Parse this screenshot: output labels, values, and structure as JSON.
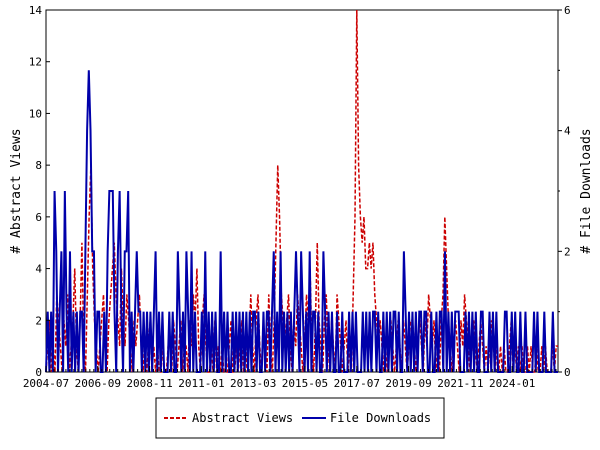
{
  "chart_data": {
    "type": "line",
    "left_axis": {
      "label": "# Abstract Views",
      "range": [
        0,
        14
      ],
      "ticks": [
        "0",
        "2",
        "4",
        "6",
        "8",
        "10",
        "12",
        "14"
      ]
    },
    "right_axis": {
      "label": "# File Downloads",
      "range": [
        0,
        6
      ],
      "ticks": [
        "0",
        "2",
        "4",
        "6"
      ]
    },
    "x_axis": {
      "start": "2004-07",
      "end": "2025-12",
      "ticks": [
        "2004-07",
        "2006-09",
        "2008-11",
        "2011-01",
        "2013-03",
        "2015-05",
        "2017-07",
        "2019-09",
        "2021-11",
        "2024-01"
      ]
    },
    "grid": false,
    "legend_placement": "bottom",
    "series": [
      {
        "name": "Abstract Views",
        "axis": "left",
        "color": "#cc0000",
        "dash": "dashed",
        "values": [
          0,
          1,
          2,
          0,
          1,
          0,
          3,
          2,
          1,
          0,
          2,
          1,
          3,
          0,
          1,
          2,
          4,
          1,
          0,
          2,
          5,
          1,
          0,
          3,
          6,
          8,
          4,
          2,
          1,
          0,
          1,
          2,
          3,
          1,
          0,
          2,
          3,
          4,
          5,
          3,
          2,
          1,
          4,
          2,
          1,
          3,
          2,
          1,
          0,
          2,
          1,
          2,
          3,
          1,
          0,
          1,
          0,
          1,
          2,
          0,
          1,
          0,
          1,
          0,
          0,
          1,
          0,
          0,
          1,
          1,
          0,
          2,
          1,
          0,
          1,
          2,
          0,
          1,
          1,
          0,
          2,
          1,
          3,
          2,
          4,
          1,
          0,
          2,
          3,
          1,
          0,
          0,
          1,
          0,
          2,
          0,
          1,
          0,
          1,
          0,
          0,
          0,
          1,
          2,
          0,
          0,
          1,
          0,
          1,
          2,
          0,
          1,
          0,
          1,
          3,
          1,
          0,
          2,
          3,
          1,
          0,
          2,
          1,
          0,
          3,
          1,
          0,
          2,
          5,
          8,
          6,
          3,
          2,
          1,
          2,
          3,
          1,
          0,
          2,
          1,
          3,
          2,
          1,
          0,
          1,
          3,
          2,
          4,
          1,
          0,
          2,
          5,
          2,
          1,
          0,
          2,
          3,
          1,
          0,
          2,
          1,
          0,
          3,
          2,
          1,
          0,
          1,
          2,
          0,
          1,
          0,
          3,
          6,
          14,
          8,
          6,
          5,
          6,
          4,
          4,
          5,
          4,
          5,
          3,
          2,
          1,
          2,
          1,
          0,
          1,
          0,
          1,
          2,
          1,
          0,
          1,
          2,
          1,
          0,
          2,
          1,
          0,
          1,
          2,
          2,
          1,
          0,
          1,
          2,
          1,
          0,
          2,
          1,
          3,
          2,
          1,
          2,
          0,
          1,
          0,
          2,
          3,
          6,
          4,
          2,
          1,
          0,
          1,
          2,
          1,
          0,
          2,
          1,
          3,
          2,
          1,
          0,
          1,
          2,
          1,
          0,
          1,
          2,
          1,
          0,
          1,
          0,
          1,
          2,
          1,
          0,
          1,
          0,
          1,
          0,
          1,
          0,
          0,
          1,
          2,
          0,
          1,
          0,
          1,
          0,
          1,
          0,
          0,
          1,
          0,
          1,
          0,
          0,
          1,
          0,
          0,
          1,
          0,
          1,
          0,
          0,
          0,
          1,
          0,
          1,
          1
        ]
      },
      {
        "name": "File Downloads",
        "axis": "right",
        "color": "#0000aa",
        "dash": "solid",
        "values": [
          0,
          1,
          0,
          1,
          0,
          3,
          2,
          0,
          1,
          2,
          0,
          3,
          1,
          0,
          2,
          0,
          1,
          0,
          1,
          0,
          1,
          1,
          0,
          2,
          4,
          5,
          4,
          2,
          2,
          0,
          1,
          1,
          0,
          0,
          1,
          0,
          2,
          3,
          3,
          3,
          1,
          0,
          2,
          3,
          1,
          0,
          2,
          2,
          3,
          0,
          1,
          0,
          1,
          2,
          1,
          1,
          0,
          1,
          0,
          1,
          0,
          1,
          0,
          1,
          2,
          0,
          1,
          0,
          1,
          0,
          0,
          0,
          1,
          0,
          1,
          0,
          0,
          2,
          1,
          0,
          1,
          0,
          2,
          1,
          0,
          2,
          0,
          1,
          0,
          0,
          0,
          1,
          0,
          2,
          0,
          1,
          0,
          1,
          0,
          1,
          0,
          0,
          2,
          0,
          1,
          0,
          1,
          0,
          0,
          1,
          0,
          1,
          0,
          1,
          0,
          1,
          0,
          1,
          0,
          1,
          0,
          1,
          1,
          0,
          1,
          0,
          0,
          1,
          0,
          1,
          1,
          0,
          1,
          2,
          0,
          1,
          0,
          2,
          0,
          1,
          0,
          1,
          0,
          1,
          0,
          1,
          2,
          1,
          0,
          2,
          1,
          0,
          1,
          0,
          2,
          0,
          1,
          1,
          0,
          1,
          0,
          0,
          2,
          1,
          0,
          1,
          0,
          1,
          0,
          0,
          1,
          0,
          0,
          1,
          0,
          0,
          0,
          1,
          0,
          1,
          0,
          1,
          0,
          0,
          0,
          1,
          0,
          1,
          0,
          1,
          0,
          1,
          1,
          0,
          1,
          0,
          0,
          1,
          0,
          1,
          0,
          1,
          0,
          1,
          1,
          0,
          1,
          0,
          0,
          2,
          1,
          0,
          1,
          0,
          1,
          0,
          1,
          0,
          1,
          1,
          0,
          1,
          1,
          0,
          0,
          1,
          0,
          0,
          1,
          0,
          1,
          1,
          0,
          2,
          0,
          1,
          0,
          1,
          0,
          1,
          1,
          1,
          0,
          0,
          0,
          1,
          0,
          1,
          0,
          1,
          0,
          1,
          0,
          0,
          1,
          1,
          0,
          0,
          0,
          1,
          0,
          1,
          0,
          1,
          0,
          0,
          0,
          0,
          1,
          1,
          0,
          0,
          1,
          0,
          1,
          0,
          0,
          1,
          0,
          0,
          1,
          0,
          0,
          0,
          0,
          1,
          0,
          1,
          0,
          0,
          0,
          1,
          0,
          0,
          0,
          0,
          1,
          0,
          0,
          0
        ]
      }
    ]
  }
}
